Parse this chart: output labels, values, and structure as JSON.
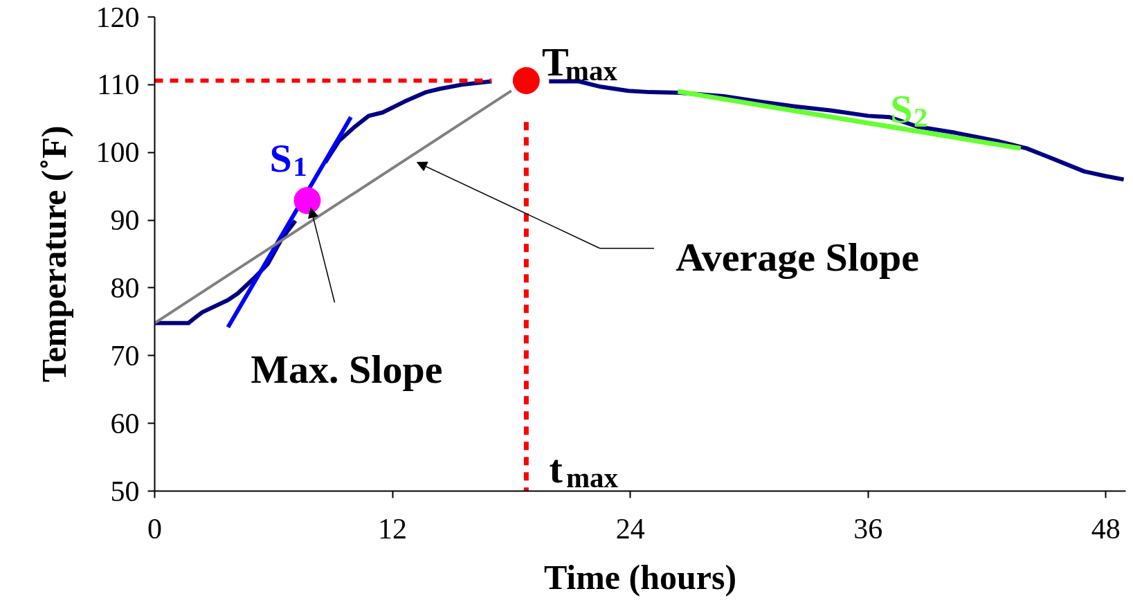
{
  "chart_data": {
    "type": "line",
    "xlabel": "Time (hours)",
    "ylabel": "Temperature (˚F)",
    "xlim": [
      0,
      49
    ],
    "ylim": [
      50,
      120
    ],
    "xticks": [
      0,
      12,
      24,
      36,
      48
    ],
    "yticks": [
      50,
      60,
      70,
      80,
      90,
      100,
      110,
      120
    ],
    "grid": false,
    "series": [
      {
        "color": "#000080",
        "x": [
          0,
          1.7,
          2,
          2.4,
          3.7,
          4.2,
          5,
          5.7,
          6.4,
          7.1,
          7.9,
          8.6,
          9.3,
          10.1,
          10.8,
          11.5,
          12.6,
          13.7,
          14.4,
          15.5,
          17,
          18.5,
          19.9,
          21.4,
          22.5,
          23.9,
          25,
          26.5,
          28.7,
          30.5,
          32.3,
          34.1,
          36,
          37.1,
          38.5,
          40.4,
          42.5,
          44,
          44.7,
          45.8,
          46.9,
          48,
          48.9
        ],
        "values": [
          74.8,
          74.8,
          75.5,
          76.4,
          78.2,
          79.2,
          81.4,
          83.5,
          87.2,
          89.9,
          null,
          98.5,
          101.7,
          103.8,
          105.4,
          105.9,
          107.5,
          108.9,
          109.4,
          110,
          110.5,
          null,
          110.5,
          110.5,
          109.7,
          109.1,
          108.9,
          108.8,
          108.3,
          107.5,
          106.8,
          106.2,
          105.4,
          105.2,
          103.8,
          102.9,
          101.7,
          100.6,
          99.8,
          98.5,
          97.2,
          96.5,
          96
        ]
      },
      {
        "color": "#0000ff",
        "x": [
          3.7,
          9.9
        ],
        "values": [
          74.2,
          105.2
        ]
      },
      {
        "color": "#808080",
        "x": [
          0,
          18
        ],
        "values": [
          74.8,
          109.1
        ]
      },
      {
        "color": "#66ff33",
        "x": [
          26.4,
          43.7
        ],
        "values": [
          109,
          100.6
        ]
      },
      {
        "color": "#ff0000",
        "line_style": "dashed",
        "x": [
          0,
          17
        ],
        "values": [
          110.6,
          110.6
        ]
      },
      {
        "color": "#ff0000",
        "line_style": "dashed",
        "x": [
          18.75,
          18.75
        ],
        "values": [
          104.5,
          50
        ]
      },
      {
        "type": "scatter",
        "marker": "circle",
        "color": "#ff0000",
        "x": [
          18.75
        ],
        "values": [
          110.6
        ]
      },
      {
        "type": "scatter",
        "marker": "circle",
        "color": "#ff00ff",
        "x": [
          7.7
        ],
        "values": [
          92.9
        ]
      }
    ],
    "annotations": [
      "T$_{max}$",
      "t$_{max}$",
      "S$_{1}$",
      "S$_{2}$",
      "Max. Slope",
      "Average Slope"
    ]
  }
}
